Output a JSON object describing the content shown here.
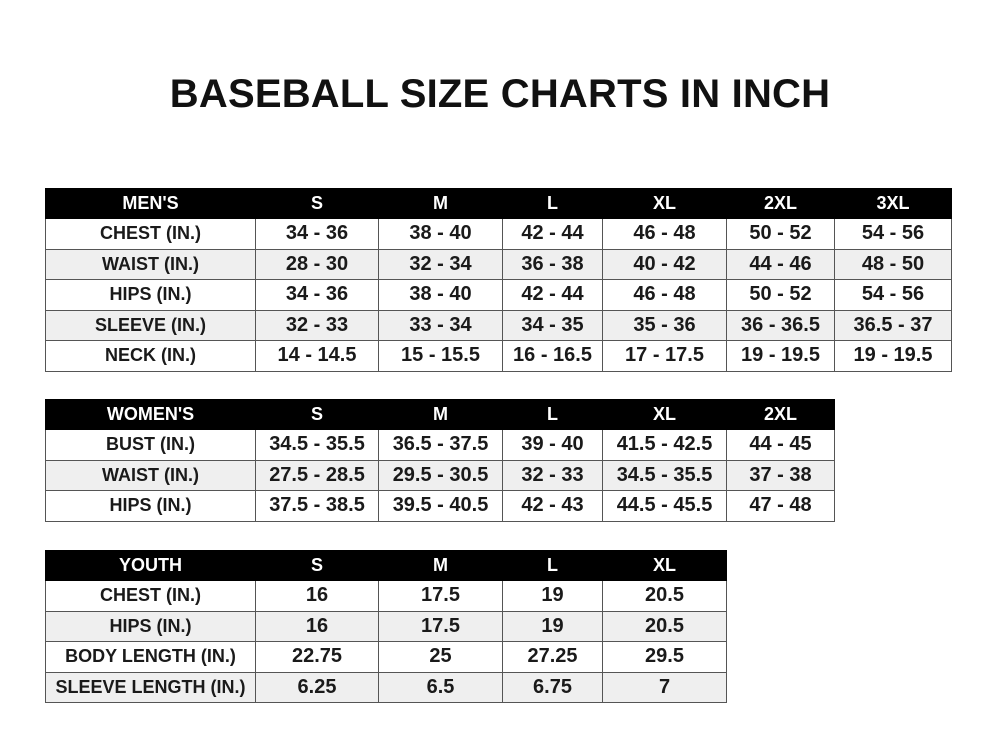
{
  "title": "BASEBALL SIZE CHARTS IN INCH",
  "tables": [
    {
      "id": "mens",
      "headers": [
        "MEN'S",
        "S",
        "M",
        "L",
        "XL",
        "2XL",
        "3XL"
      ],
      "rows": [
        [
          "CHEST (IN.)",
          "34 - 36",
          "38 - 40",
          "42 - 44",
          "46 - 48",
          "50 - 52",
          "54 - 56"
        ],
        [
          "WAIST (IN.)",
          "28 - 30",
          "32 - 34",
          "36 - 38",
          "40 - 42",
          "44 - 46",
          "48 - 50"
        ],
        [
          "HIPS (IN.)",
          "34 - 36",
          "38 - 40",
          "42 - 44",
          "46 - 48",
          "50 - 52",
          "54 - 56"
        ],
        [
          "SLEEVE (IN.)",
          "32 - 33",
          "33 - 34",
          "34 - 35",
          "35 - 36",
          "36 - 36.5",
          "36.5 - 37"
        ],
        [
          "NECK (IN.)",
          "14 - 14.5",
          "15 - 15.5",
          "16 - 16.5",
          "17 - 17.5",
          "19 - 19.5",
          "19 - 19.5"
        ]
      ]
    },
    {
      "id": "womens",
      "headers": [
        "WOMEN'S",
        "S",
        "M",
        "L",
        "XL",
        "2XL"
      ],
      "rows": [
        [
          "BUST (IN.)",
          "34.5 - 35.5",
          "36.5 - 37.5",
          "39 - 40",
          "41.5 - 42.5",
          "44 - 45"
        ],
        [
          "WAIST (IN.)",
          "27.5 - 28.5",
          "29.5 - 30.5",
          "32 - 33",
          "34.5 - 35.5",
          "37 - 38"
        ],
        [
          "HIPS (IN.)",
          "37.5 - 38.5",
          "39.5 - 40.5",
          "42 - 43",
          "44.5 - 45.5",
          "47 - 48"
        ]
      ]
    },
    {
      "id": "youth",
      "headers": [
        "YOUTH",
        "S",
        "M",
        "L",
        "XL"
      ],
      "rows": [
        [
          "CHEST (IN.)",
          "16",
          "17.5",
          "19",
          "20.5"
        ],
        [
          "HIPS (IN.)",
          "16",
          "17.5",
          "19",
          "20.5"
        ],
        [
          "BODY LENGTH (IN.)",
          "22.75",
          "25",
          "27.25",
          "29.5"
        ],
        [
          "SLEEVE LENGTH (IN.)",
          "6.25",
          "6.5",
          "6.75",
          "7"
        ]
      ]
    }
  ]
}
